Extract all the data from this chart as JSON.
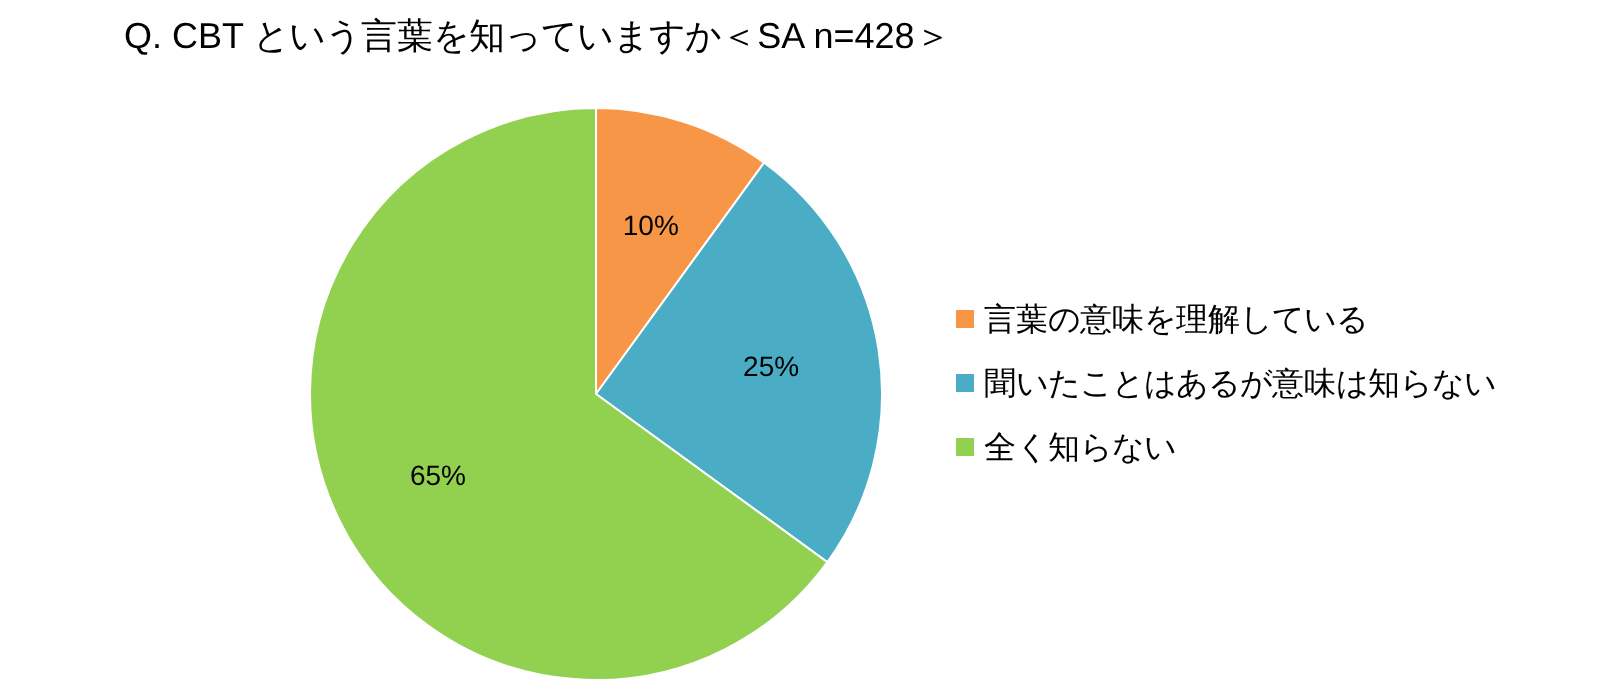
{
  "chart_data": {
    "type": "pie",
    "title": "Q. CBT という言葉を知っていますか＜SA n=428＞",
    "categories": [
      "言葉の意味を理解している",
      "聞いたことはあるが意味は知らない",
      "全く知らない"
    ],
    "values": [
      10,
      25,
      65
    ],
    "colors": [
      "#f79646",
      "#4bacc6",
      "#92d050"
    ],
    "value_labels": [
      "10%",
      "25%",
      "65%"
    ],
    "legend": "right"
  }
}
